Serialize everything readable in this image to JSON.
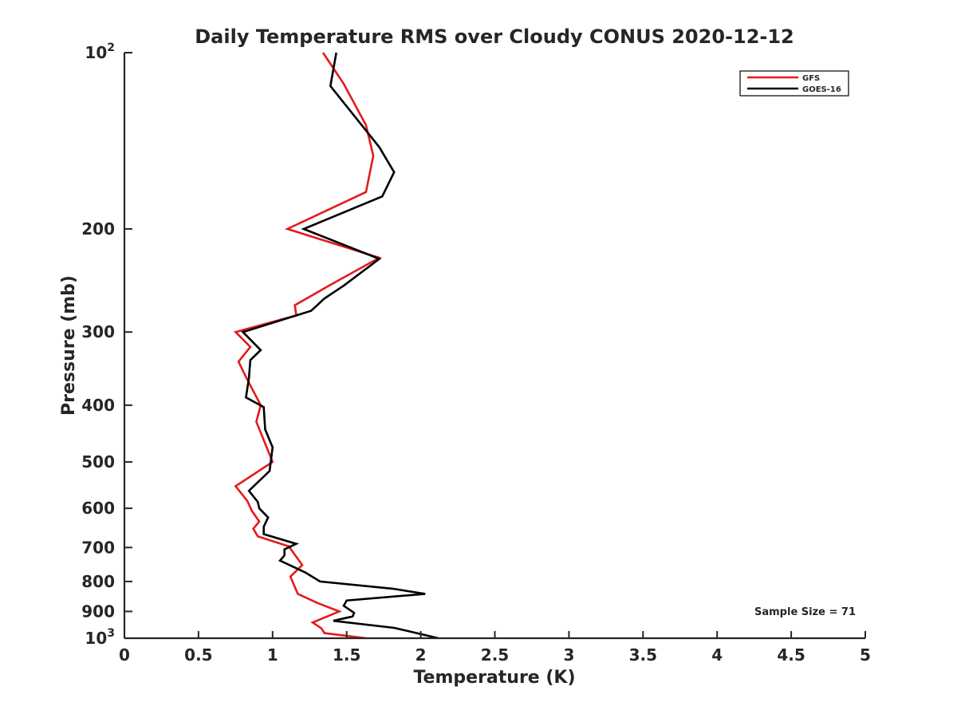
{
  "chart_data": {
    "type": "line",
    "title": "Daily Temperature RMS over Cloudy CONUS 2020-12-12",
    "xlabel": "Temperature (K)",
    "ylabel": "Pressure (mb)",
    "xlim": [
      0,
      5
    ],
    "ylim": [
      100,
      1000
    ],
    "y_scale": "log",
    "y_reversed": true,
    "grid": false,
    "legend_position": "top-right",
    "x_ticks": [
      {
        "value": 0,
        "label": "0"
      },
      {
        "value": 0.5,
        "label": "0.5"
      },
      {
        "value": 1,
        "label": "1"
      },
      {
        "value": 1.5,
        "label": "1.5"
      },
      {
        "value": 2,
        "label": "2"
      },
      {
        "value": 2.5,
        "label": "2.5"
      },
      {
        "value": 3,
        "label": "3"
      },
      {
        "value": 3.5,
        "label": "3.5"
      },
      {
        "value": 4,
        "label": "4"
      },
      {
        "value": 4.5,
        "label": "4.5"
      },
      {
        "value": 5,
        "label": "5"
      }
    ],
    "y_ticks": [
      {
        "value": 100,
        "base": "10",
        "exp": "2"
      },
      {
        "value": 200,
        "label": "200"
      },
      {
        "value": 300,
        "label": "300"
      },
      {
        "value": 400,
        "label": "400"
      },
      {
        "value": 500,
        "label": "500"
      },
      {
        "value": 600,
        "label": "600"
      },
      {
        "value": 700,
        "label": "700"
      },
      {
        "value": 800,
        "label": "800"
      },
      {
        "value": 900,
        "label": "900"
      },
      {
        "value": 1000,
        "base": "10",
        "exp": "3"
      }
    ],
    "series": [
      {
        "name": "GFS",
        "color": "#e41a1c",
        "points": [
          [
            1.34,
            100
          ],
          [
            1.48,
            113
          ],
          [
            1.63,
            133
          ],
          [
            1.68,
            150
          ],
          [
            1.63,
            173
          ],
          [
            1.1,
            200
          ],
          [
            1.72,
            224
          ],
          [
            1.38,
            250
          ],
          [
            1.15,
            270
          ],
          [
            1.16,
            281
          ],
          [
            0.75,
            300
          ],
          [
            0.85,
            318
          ],
          [
            0.77,
            337
          ],
          [
            0.82,
            358
          ],
          [
            0.92,
            400
          ],
          [
            0.89,
            427
          ],
          [
            1.0,
            500
          ],
          [
            0.75,
            550
          ],
          [
            0.83,
            583
          ],
          [
            0.86,
            606
          ],
          [
            0.91,
            632
          ],
          [
            0.87,
            650
          ],
          [
            0.9,
            670
          ],
          [
            1.11,
            697
          ],
          [
            1.2,
            750
          ],
          [
            1.12,
            785
          ],
          [
            1.17,
            840
          ],
          [
            1.3,
            870
          ],
          [
            1.45,
            900
          ],
          [
            1.27,
            940
          ],
          [
            1.33,
            962
          ],
          [
            1.35,
            980
          ],
          [
            1.63,
            1000
          ]
        ]
      },
      {
        "name": "GOES-16",
        "color": "#000000",
        "points": [
          [
            1.43,
            100
          ],
          [
            1.39,
            114
          ],
          [
            1.57,
            130
          ],
          [
            1.72,
            145
          ],
          [
            1.82,
            160
          ],
          [
            1.74,
            176
          ],
          [
            1.21,
            200
          ],
          [
            1.72,
            225
          ],
          [
            1.48,
            250
          ],
          [
            1.35,
            263
          ],
          [
            1.26,
            276
          ],
          [
            0.8,
            300
          ],
          [
            0.92,
            322
          ],
          [
            0.85,
            335
          ],
          [
            0.84,
            360
          ],
          [
            0.82,
            388
          ],
          [
            0.94,
            403
          ],
          [
            0.95,
            440
          ],
          [
            1.0,
            472
          ],
          [
            0.98,
            518
          ],
          [
            0.84,
            560
          ],
          [
            0.9,
            585
          ],
          [
            0.91,
            600
          ],
          [
            0.97,
            622
          ],
          [
            0.94,
            645
          ],
          [
            0.94,
            664
          ],
          [
            1.16,
            690
          ],
          [
            1.08,
            705
          ],
          [
            1.08,
            722
          ],
          [
            1.05,
            737
          ],
          [
            1.22,
            772
          ],
          [
            1.32,
            800
          ],
          [
            1.81,
            823
          ],
          [
            2.03,
            840
          ],
          [
            1.5,
            862
          ],
          [
            1.48,
            880
          ],
          [
            1.55,
            905
          ],
          [
            1.54,
            918
          ],
          [
            1.41,
            934
          ],
          [
            1.82,
            960
          ],
          [
            2.12,
            1000
          ]
        ]
      }
    ],
    "annotation": "Sample Size = 71"
  }
}
